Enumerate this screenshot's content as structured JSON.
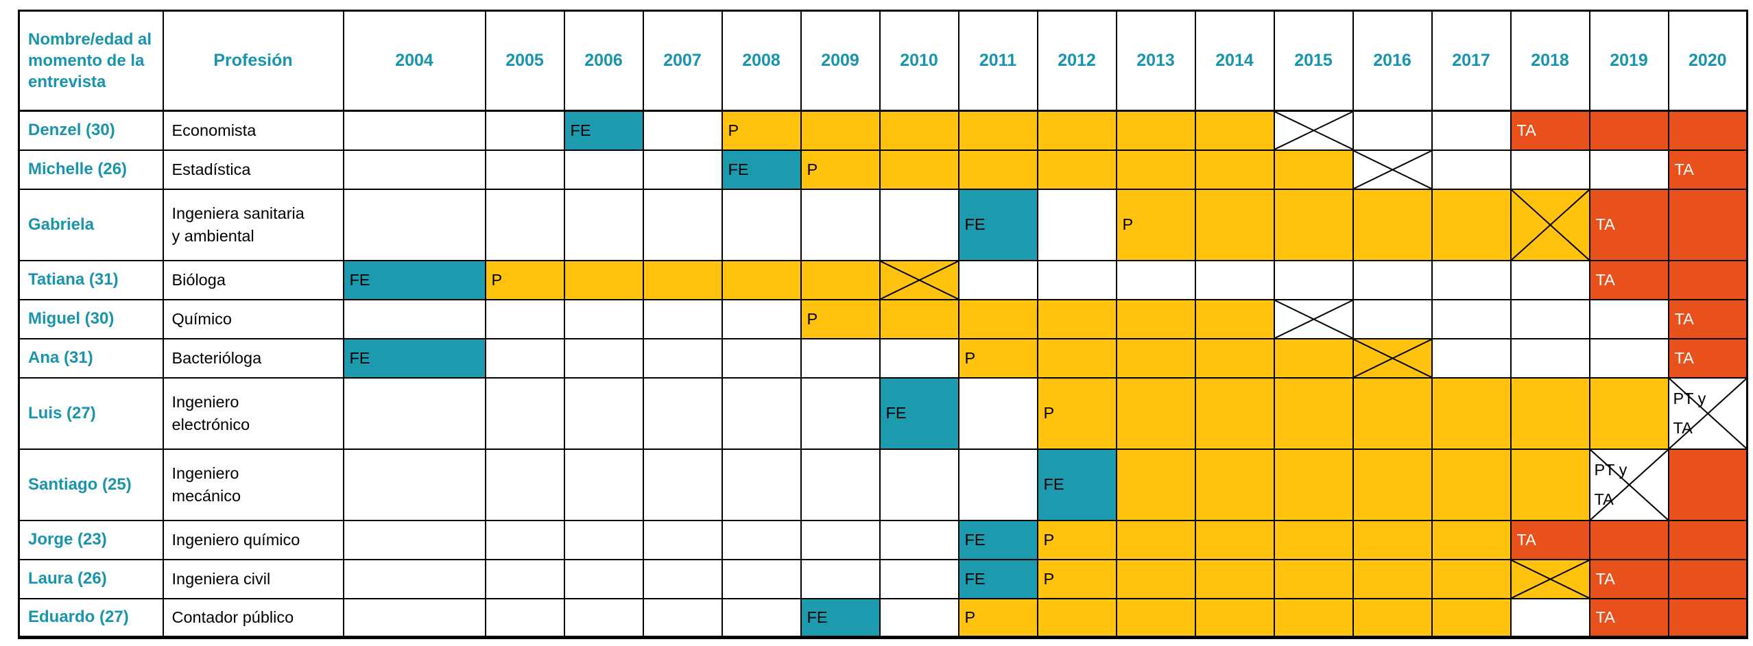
{
  "header": {
    "name_col": "Nombre/edad al momento de la entrevista",
    "profession_col": "Profesión",
    "years": [
      "2004",
      "2005",
      "2006",
      "2007",
      "2008",
      "2009",
      "2010",
      "2011",
      "2012",
      "2013",
      "2014",
      "2015",
      "2016",
      "2017",
      "2018",
      "2019",
      "2020"
    ]
  },
  "colors": {
    "fe_fill": "#1E9AAE",
    "p_fill": "#FFC20E",
    "ta_fill": "#E8501C",
    "teal_text": "#1894AC",
    "border": "#000000",
    "label_on_ta": "#FFFFFF",
    "label_default": "#000000"
  },
  "chart_data": {
    "type": "table",
    "title": "",
    "columns": [
      "Nombre/edad al momento de la entrevista",
      "Profesión",
      "2004",
      "2005",
      "2006",
      "2007",
      "2008",
      "2009",
      "2010",
      "2011",
      "2012",
      "2013",
      "2014",
      "2015",
      "2016",
      "2017",
      "2018",
      "2019",
      "2020"
    ],
    "cell_legend": {
      "fe": "FE",
      "p": "P",
      "ta": "TA",
      "x": "crossed cell",
      "pt_ta": "PT y TA"
    },
    "rows": [
      {
        "name": "Denzel (30)",
        "profession": "Economista",
        "tall": false,
        "cells": [
          {},
          {},
          {
            "bg": "fe",
            "label": "FE"
          },
          {},
          {
            "bg": "p",
            "label": "P"
          },
          {
            "bg": "p"
          },
          {
            "bg": "p"
          },
          {
            "bg": "p"
          },
          {
            "bg": "p"
          },
          {
            "bg": "p"
          },
          {
            "bg": "p"
          },
          {
            "x": true
          },
          {},
          {},
          {
            "bg": "ta",
            "label": "TA"
          },
          {
            "bg": "ta"
          },
          {
            "bg": "ta"
          }
        ]
      },
      {
        "name": "Michelle (26)",
        "profession": "Estadística",
        "tall": false,
        "cells": [
          {},
          {},
          {},
          {},
          {
            "bg": "fe",
            "label": "FE"
          },
          {
            "bg": "p",
            "label": "P"
          },
          {
            "bg": "p"
          },
          {
            "bg": "p"
          },
          {
            "bg": "p"
          },
          {
            "bg": "p"
          },
          {
            "bg": "p"
          },
          {
            "bg": "p"
          },
          {
            "x": true
          },
          {},
          {},
          {},
          {
            "bg": "ta",
            "label": "TA"
          }
        ]
      },
      {
        "name": "Gabriela",
        "profession": "Ingeniera sanitaria\ny ambiental",
        "tall": true,
        "cells": [
          {},
          {},
          {},
          {},
          {},
          {},
          {},
          {
            "bg": "fe",
            "label": "FE"
          },
          {},
          {
            "bg": "p",
            "label": "P"
          },
          {
            "bg": "p"
          },
          {
            "bg": "p"
          },
          {
            "bg": "p"
          },
          {
            "bg": "p"
          },
          {
            "bg": "p",
            "x": true
          },
          {
            "bg": "ta",
            "label": "TA"
          },
          {
            "bg": "ta"
          }
        ]
      },
      {
        "name": "Tatiana (31)",
        "profession": "Bióloga",
        "tall": false,
        "cells": [
          {
            "bg": "fe",
            "label": "FE"
          },
          {
            "bg": "p",
            "label": "P"
          },
          {
            "bg": "p"
          },
          {
            "bg": "p"
          },
          {
            "bg": "p"
          },
          {
            "bg": "p"
          },
          {
            "bg": "p",
            "x": true
          },
          {},
          {},
          {},
          {},
          {},
          {},
          {},
          {},
          {
            "bg": "ta",
            "label": "TA"
          },
          {
            "bg": "ta"
          }
        ]
      },
      {
        "name": "Miguel (30)",
        "profession": "Químico",
        "tall": false,
        "cells": [
          {},
          {},
          {},
          {},
          {},
          {
            "bg": "p",
            "label": "P"
          },
          {
            "bg": "p"
          },
          {
            "bg": "p"
          },
          {
            "bg": "p"
          },
          {
            "bg": "p"
          },
          {
            "bg": "p"
          },
          {
            "x": true
          },
          {},
          {},
          {},
          {},
          {
            "bg": "ta",
            "label": "TA"
          }
        ]
      },
      {
        "name": "Ana (31)",
        "profession": "Bacterióloga",
        "tall": false,
        "cells": [
          {
            "bg": "fe",
            "label": "FE"
          },
          {},
          {},
          {},
          {},
          {},
          {},
          {
            "bg": "p",
            "label": "P"
          },
          {
            "bg": "p"
          },
          {
            "bg": "p"
          },
          {
            "bg": "p"
          },
          {
            "bg": "p"
          },
          {
            "bg": "p",
            "x": true
          },
          {},
          {},
          {},
          {
            "bg": "ta",
            "label": "TA"
          }
        ]
      },
      {
        "name": "Luis (27)",
        "profession": "Ingeniero\nelectrónico",
        "tall": true,
        "cells": [
          {},
          {},
          {},
          {},
          {},
          {},
          {
            "bg": "fe",
            "label": "FE"
          },
          {},
          {
            "bg": "p",
            "label": "P"
          },
          {
            "bg": "p"
          },
          {
            "bg": "p"
          },
          {
            "bg": "p"
          },
          {
            "bg": "p"
          },
          {
            "bg": "p"
          },
          {
            "bg": "p"
          },
          {
            "bg": "p"
          },
          {
            "x": true,
            "lines": [
              "PT y",
              "TA"
            ]
          }
        ]
      },
      {
        "name": "Santiago (25)",
        "profession": "Ingeniero\nmecánico",
        "tall": true,
        "cells": [
          {},
          {},
          {},
          {},
          {},
          {},
          {},
          {},
          {
            "bg": "fe",
            "label": "FE"
          },
          {
            "bg": "p"
          },
          {
            "bg": "p"
          },
          {
            "bg": "p"
          },
          {
            "bg": "p"
          },
          {
            "bg": "p"
          },
          {
            "bg": "p"
          },
          {
            "x": true,
            "lines": [
              "PT y",
              "TA"
            ]
          },
          {
            "bg": "ta"
          }
        ]
      },
      {
        "name": "Jorge (23)",
        "profession": "Ingeniero químico",
        "tall": false,
        "cells": [
          {},
          {},
          {},
          {},
          {},
          {},
          {},
          {
            "bg": "fe",
            "label": "FE"
          },
          {
            "bg": "p",
            "label": "P"
          },
          {
            "bg": "p"
          },
          {
            "bg": "p"
          },
          {
            "bg": "p"
          },
          {
            "bg": "p"
          },
          {
            "bg": "p"
          },
          {
            "bg": "ta",
            "label": "TA"
          },
          {
            "bg": "ta"
          },
          {
            "bg": "ta"
          }
        ]
      },
      {
        "name": "Laura (26)",
        "profession": "Ingeniera civil",
        "tall": false,
        "cells": [
          {},
          {},
          {},
          {},
          {},
          {},
          {},
          {
            "bg": "fe",
            "label": "FE"
          },
          {
            "bg": "p",
            "label": "P"
          },
          {
            "bg": "p"
          },
          {
            "bg": "p"
          },
          {
            "bg": "p"
          },
          {
            "bg": "p"
          },
          {
            "bg": "p"
          },
          {
            "bg": "p",
            "x": true
          },
          {
            "bg": "ta",
            "label": "TA"
          },
          {
            "bg": "ta"
          }
        ]
      },
      {
        "name": "Eduardo (27)",
        "profession": "Contador público",
        "tall": false,
        "cells": [
          {},
          {},
          {},
          {},
          {},
          {
            "bg": "fe",
            "label": "FE"
          },
          {},
          {
            "bg": "p",
            "label": "P"
          },
          {
            "bg": "p"
          },
          {
            "bg": "p"
          },
          {
            "bg": "p"
          },
          {
            "bg": "p"
          },
          {
            "bg": "p"
          },
          {
            "bg": "p"
          },
          {},
          {
            "bg": "ta",
            "label": "TA"
          },
          {
            "bg": "ta"
          }
        ]
      }
    ]
  }
}
